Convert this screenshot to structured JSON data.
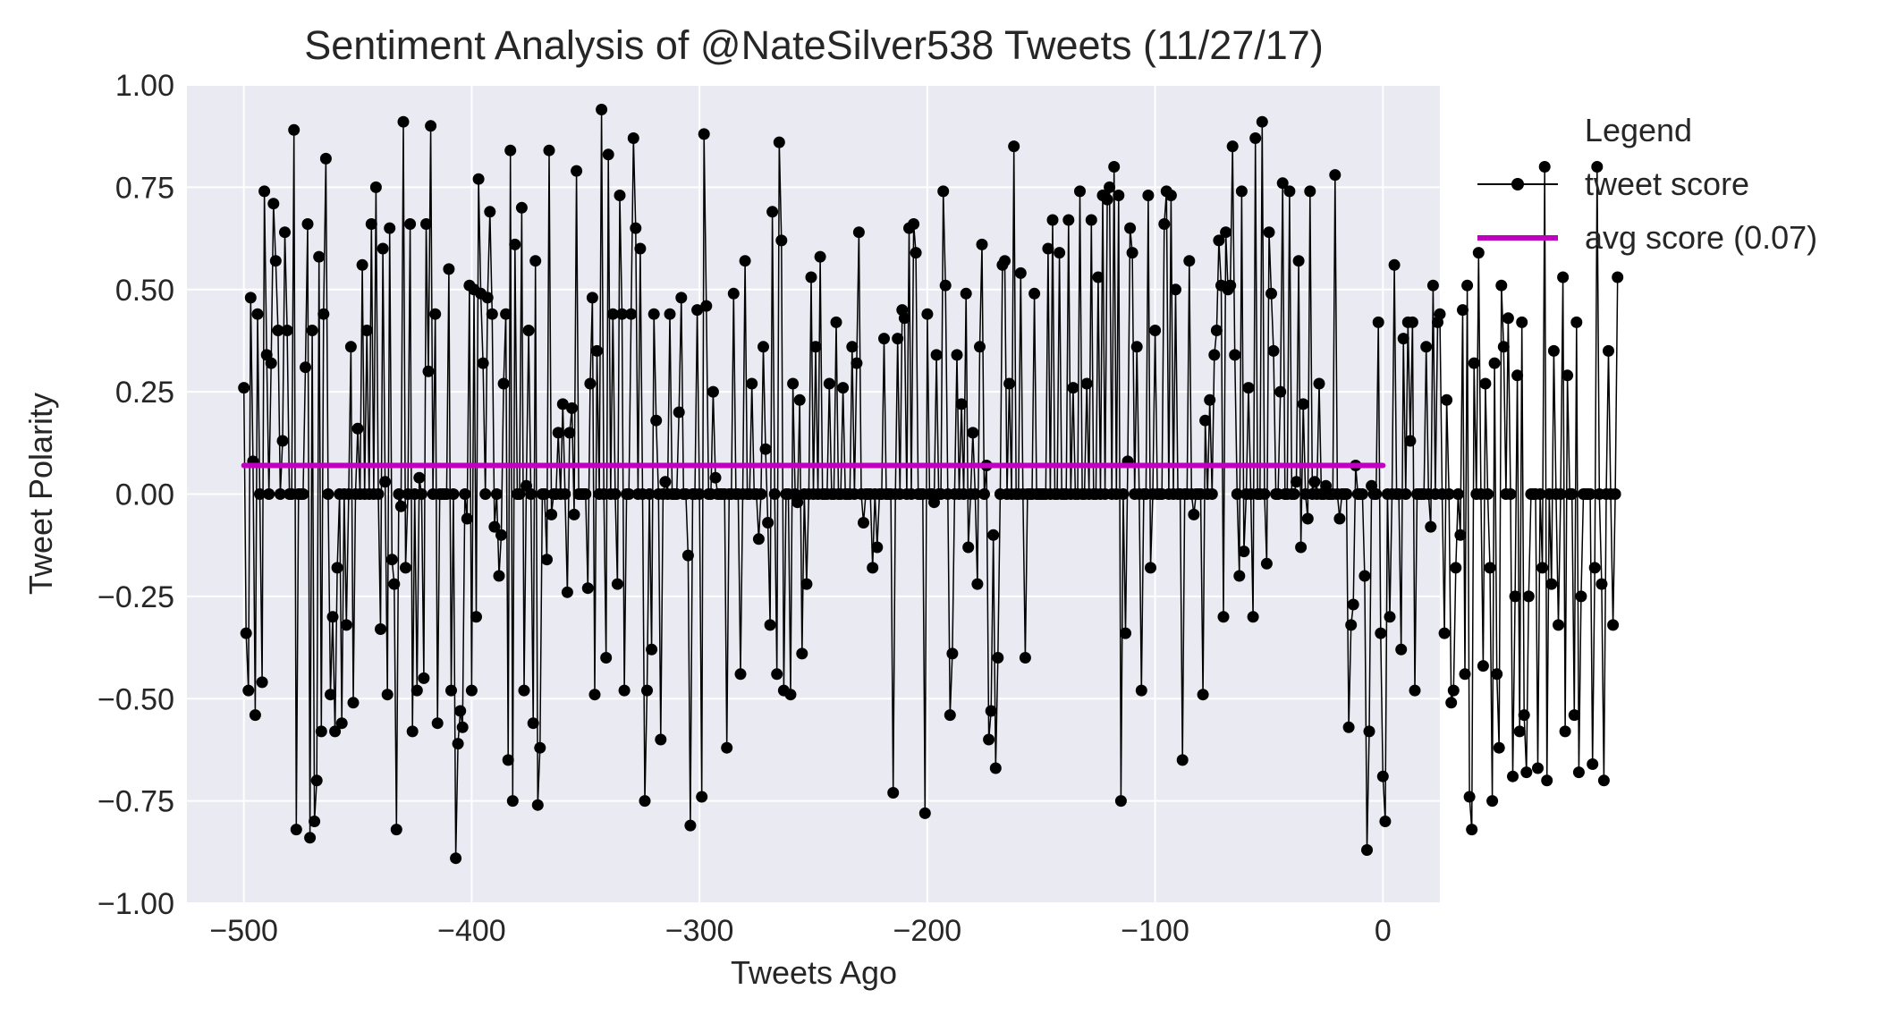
{
  "chart_data": {
    "type": "line",
    "title": "Sentiment Analysis of @NateSilver538 Tweets (11/27/17)",
    "xlabel": "Tweets Ago",
    "ylabel": "Tweet Polarity",
    "xlim": [
      -525,
      25
    ],
    "ylim": [
      -1.0,
      1.0
    ],
    "x_ticks": [
      -500,
      -400,
      -300,
      -200,
      -100,
      0
    ],
    "x_tick_labels": [
      "−500",
      "−400",
      "−300",
      "−200",
      "−100",
      "0"
    ],
    "y_ticks": [
      1.0,
      0.75,
      0.5,
      0.25,
      0.0,
      -0.25,
      -0.5,
      -0.75,
      -1.0
    ],
    "y_tick_labels": [
      "1.00",
      "0.75",
      "0.50",
      "0.25",
      "0.00",
      "−0.25",
      "−0.50",
      "−0.75",
      "−1.00"
    ],
    "grid": true,
    "legend": {
      "title": "Legend",
      "placement": "outside-right-top",
      "entries": [
        "tweet score",
        "avg score (0.07)"
      ]
    },
    "colors": {
      "background": "#eaeaf2",
      "grid": "#ffffff",
      "tweet_score": "#000000",
      "avg_score": "#bf00bf"
    },
    "series": [
      {
        "name": "tweet score",
        "style": "line-with-markers",
        "x_start": -500,
        "x_step": 1,
        "values": [
          0.26,
          -0.34,
          -0.48,
          0.48,
          0.08,
          -0.54,
          0.44,
          0,
          -0.46,
          0.74,
          0.34,
          0,
          0.32,
          0.71,
          0.57,
          0.4,
          0,
          0.13,
          0.64,
          0.4,
          0,
          0,
          0.89,
          -0.82,
          0,
          0,
          0,
          0.31,
          0.66,
          -0.84,
          0.4,
          -0.8,
          -0.7,
          0.58,
          -0.58,
          0.44,
          0.82,
          0,
          -0.49,
          -0.3,
          -0.58,
          -0.18,
          0,
          -0.56,
          0,
          -0.32,
          0,
          0.36,
          -0.51,
          0,
          0.16,
          0,
          0.56,
          0,
          0.4,
          0,
          0.66,
          0,
          0.75,
          0,
          -0.33,
          0.6,
          0.03,
          -0.49,
          0.65,
          -0.16,
          -0.22,
          -0.82,
          0,
          -0.03,
          0.91,
          -0.18,
          0,
          0.66,
          -0.58,
          0,
          -0.48,
          0.04,
          0,
          -0.45,
          0.66,
          0.3,
          0.9,
          0,
          0.44,
          -0.56,
          0,
          0,
          0,
          0,
          0.55,
          -0.48,
          0,
          -0.89,
          -0.61,
          -0.53,
          -0.57,
          0,
          -0.06,
          0.51,
          -0.48,
          0.5,
          -0.3,
          0.77,
          0.49,
          0.32,
          0,
          0.48,
          0.69,
          0.44,
          -0.08,
          0,
          -0.2,
          -0.1,
          0.27,
          0.44,
          -0.65,
          0.84,
          -0.75,
          0.61,
          0,
          0,
          0.7,
          -0.48,
          0.02,
          0.4,
          0,
          -0.56,
          0.57,
          -0.76,
          -0.62,
          0,
          0,
          -0.16,
          0.84,
          -0.05,
          0,
          0,
          0.15,
          0,
          0.22,
          0,
          -0.24,
          0.15,
          0.21,
          -0.05,
          0.79,
          0,
          0,
          0,
          0,
          -0.23,
          0.27,
          0.48,
          -0.49,
          0.35,
          0,
          0.94,
          0,
          -0.4,
          0.83,
          0,
          0.44,
          0,
          -0.22,
          0.73,
          0.44,
          -0.48,
          0,
          0,
          0.44,
          0.87,
          0.65,
          0,
          0.6,
          0,
          -0.75,
          -0.48,
          0,
          -0.38,
          0.44,
          0.18,
          0,
          -0.6,
          0,
          0.03,
          0,
          0.44,
          0,
          0,
          0,
          0.2,
          0.48,
          0,
          0,
          -0.15,
          -0.81,
          0,
          0,
          0.45,
          0,
          -0.74,
          0.88,
          0.46,
          0,
          0,
          0.25,
          0.04,
          0,
          0,
          0,
          0,
          -0.62,
          0,
          0,
          0.49,
          0,
          0,
          -0.44,
          0,
          0.57,
          0,
          0,
          0.27,
          0,
          0,
          -0.11,
          0,
          0.36,
          0.11,
          -0.07,
          -0.32,
          0.69,
          0,
          -0.44,
          0.86,
          0.62,
          -0.48,
          0,
          0,
          -0.49,
          0.27,
          0,
          -0.02,
          0.23,
          -0.39,
          0,
          -0.22,
          0,
          0.53,
          0,
          0.36,
          0,
          0.58,
          0,
          0,
          0,
          0.27,
          0,
          0,
          0.42,
          0,
          0,
          0.26,
          0,
          0,
          0,
          0.36,
          0,
          0.32,
          0.64,
          0,
          -0.07,
          0,
          0,
          0,
          -0.18,
          0,
          -0.13,
          0,
          0,
          0.38,
          0,
          0,
          0,
          -0.73,
          0,
          0.38,
          0,
          0.45,
          0.43,
          0,
          0.65,
          0,
          0.66,
          0.59,
          0,
          0,
          0,
          -0.78,
          0.44,
          0,
          0,
          -0.02,
          0.34,
          0,
          0,
          0.74,
          0.51,
          0,
          -0.54,
          -0.39,
          0,
          0.34,
          0,
          0.22,
          0,
          0.49,
          -0.13,
          0,
          0.15,
          0,
          -0.22,
          0.36,
          0.61,
          0,
          0.07,
          -0.6,
          -0.53,
          -0.1,
          -0.67,
          -0.4,
          0,
          0.56,
          0.57,
          0,
          0.27,
          0,
          0.85,
          0,
          0,
          0.54,
          0,
          -0.4,
          0,
          0,
          0,
          0.49,
          0,
          0,
          0,
          0,
          0,
          0.6,
          0,
          0.67,
          0,
          0,
          0.59,
          0,
          0,
          0,
          0.67,
          0,
          0.26,
          0,
          0,
          0.74,
          0,
          0,
          0.27,
          0,
          0.67,
          0,
          0,
          0.53,
          0,
          0.73,
          0,
          0.72,
          0.75,
          0,
          0.8,
          0,
          0.73,
          -0.75,
          0,
          -0.34,
          0.08,
          0.65,
          0.59,
          0,
          0.36,
          0,
          -0.48,
          0,
          0,
          0.73,
          -0.18,
          0,
          0.4,
          0,
          0,
          0,
          0.66,
          0.74,
          0,
          0.73,
          0,
          0.5,
          0,
          0,
          -0.65,
          0,
          0,
          0.57,
          0,
          -0.05,
          0,
          0,
          0,
          -0.49,
          0.18,
          0,
          0.23,
          0,
          0.34,
          0.4,
          0.62,
          0.51,
          -0.3,
          0.64,
          0.5,
          0.51,
          0.85,
          0.34,
          0,
          -0.2,
          0.74,
          -0.14,
          0,
          0.26,
          0,
          -0.3,
          0.87,
          0,
          0,
          0.91,
          0,
          -0.17,
          0.64,
          0.49,
          0.35,
          0,
          0,
          0.25,
          0.76,
          0,
          0,
          0.74,
          0,
          0,
          0.03,
          0.57,
          -0.13,
          0.22,
          0,
          -0.06,
          0.74,
          0,
          0.03,
          0,
          0.27,
          0,
          0,
          0.02,
          0,
          0,
          0,
          0.78,
          0,
          -0.06,
          0,
          0,
          0,
          -0.57,
          -0.32,
          -0.27,
          0.07,
          0,
          0,
          0,
          -0.2,
          -0.87,
          -0.58,
          0.02,
          0,
          0,
          0.42,
          -0.34,
          -0.69,
          -0.8,
          0,
          -0.3,
          0,
          0.56,
          0,
          0,
          -0.38,
          0.38,
          0,
          0.42,
          0.13,
          0.42,
          -0.48,
          0,
          0,
          0,
          0,
          0.36,
          0,
          -0.08,
          0.51,
          0,
          0.42,
          0.44,
          0,
          -0.34,
          0.23,
          0,
          -0.51,
          -0.48,
          -0.18,
          0,
          -0.1,
          0.45,
          -0.44,
          0.51,
          -0.74,
          -0.82,
          0.32,
          0,
          0.59,
          0,
          -0.42,
          0.27,
          0,
          -0.18,
          -0.75,
          0.32,
          -0.44,
          -0.62,
          0.51,
          0.36,
          0,
          0.43,
          0,
          -0.69,
          -0.25,
          0.29,
          -0.58,
          0.42,
          -0.54,
          -0.68,
          -0.25,
          0,
          0,
          0,
          -0.67,
          0,
          -0.18,
          0.8,
          -0.7,
          0,
          -0.22,
          0.35,
          0,
          -0.32,
          0,
          0.53,
          -0.58,
          0.29,
          0,
          0,
          -0.54,
          0.42,
          -0.68,
          -0.25,
          0,
          0,
          0,
          0,
          -0.66,
          -0.18,
          0.8,
          0,
          -0.22,
          -0.7,
          0,
          0.35,
          0,
          -0.32,
          0,
          0.53
        ]
      },
      {
        "name": "avg score (0.07)",
        "style": "line",
        "x": [
          -500,
          0
        ],
        "values": [
          0.07,
          0.07
        ]
      }
    ]
  }
}
